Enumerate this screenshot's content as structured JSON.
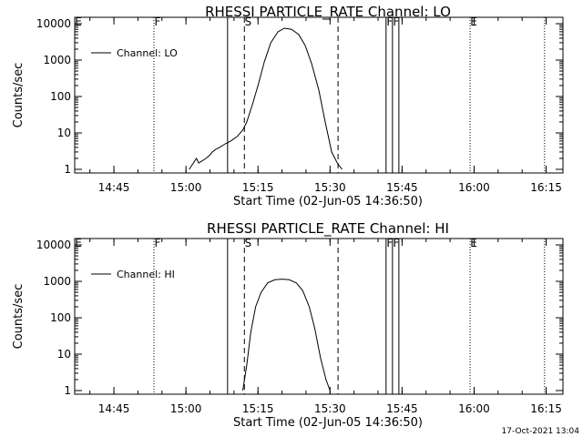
{
  "timestamp": "17-Oct-2021 13:04",
  "chart_data": [
    {
      "type": "line",
      "title": "RHESSI PARTICLE_RATE Channel: LO",
      "xlabel": "Start Time (02-Jun-05 14:36:50)",
      "ylabel": "Counts/sec",
      "x_unit": "time (HH:MM, 02-Jun-05)",
      "xlim": [
        "14:36:50",
        "16:18:30"
      ],
      "ylim": [
        1,
        10000
      ],
      "yscale": "log",
      "x_ticks": [
        "14:45",
        "15:00",
        "15:15",
        "15:30",
        "15:45",
        "16:00",
        "16:15"
      ],
      "y_ticks": [
        "1",
        "10",
        "100",
        "1000",
        "10000"
      ],
      "legend": {
        "position": "top-left",
        "entries": [
          "Channel: LO"
        ]
      },
      "series": [
        {
          "name": "Channel: LO",
          "x": [
            "15:00:40",
            "15:02:10",
            "15:02:40",
            "15:04:10",
            "15:05:00",
            "15:05:30",
            "15:06:10",
            "15:07:00",
            "15:08:10",
            "15:09:20",
            "15:10:40",
            "15:11:50",
            "15:12:40",
            "15:13:50",
            "15:15:00",
            "15:16:20",
            "15:17:40",
            "15:19:10",
            "15:20:30",
            "15:22:00",
            "15:23:30",
            "15:24:50",
            "15:26:10",
            "15:27:40",
            "15:29:00",
            "15:30:20",
            "15:31:30",
            "15:32:30"
          ],
          "y": [
            1,
            2,
            1.5,
            2,
            2.5,
            3,
            3.5,
            4,
            5,
            6,
            8,
            12,
            20,
            60,
            200,
            900,
            3000,
            6000,
            7500,
            7000,
            5000,
            2500,
            800,
            150,
            20,
            3,
            1.5,
            1
          ]
        }
      ],
      "vlines": [
        {
          "x": "14:53:20",
          "style": "dotted",
          "label": "F"
        },
        {
          "x": "15:08:40",
          "style": "solid",
          "label": ""
        },
        {
          "x": "15:12:10",
          "style": "dashed",
          "label": "S"
        },
        {
          "x": "15:31:40",
          "style": "dashed",
          "label": ""
        },
        {
          "x": "15:41:40",
          "style": "solid",
          "label": "F"
        },
        {
          "x": "15:43:00",
          "style": "solid",
          "label": "F"
        },
        {
          "x": "15:44:20",
          "style": "solid",
          "label": ""
        },
        {
          "x": "15:59:10",
          "style": "dotted",
          "label": "E"
        },
        {
          "x": "16:14:40",
          "style": "dotted",
          "label": ""
        }
      ],
      "top_left_marker": "E"
    },
    {
      "type": "line",
      "title": "RHESSI PARTICLE_RATE Channel: HI",
      "xlabel": "Start Time (02-Jun-05 14:36:50)",
      "ylabel": "Counts/sec",
      "x_unit": "time (HH:MM, 02-Jun-05)",
      "xlim": [
        "14:36:50",
        "16:18:30"
      ],
      "ylim": [
        1,
        10000
      ],
      "yscale": "log",
      "x_ticks": [
        "14:45",
        "15:00",
        "15:15",
        "15:30",
        "15:45",
        "16:00",
        "16:15"
      ],
      "y_ticks": [
        "1",
        "10",
        "100",
        "1000",
        "10000"
      ],
      "legend": {
        "position": "top-left",
        "entries": [
          "Channel: HI"
        ]
      },
      "series": [
        {
          "name": "Channel: HI",
          "x": [
            "15:11:50",
            "15:12:40",
            "15:13:30",
            "15:14:30",
            "15:15:40",
            "15:17:00",
            "15:18:30",
            "15:20:00",
            "15:21:30",
            "15:23:00",
            "15:24:20",
            "15:25:40",
            "15:26:50",
            "15:28:00",
            "15:29:10",
            "15:30:00"
          ],
          "y": [
            1,
            5,
            40,
            200,
            500,
            900,
            1100,
            1150,
            1100,
            900,
            550,
            200,
            50,
            8,
            2,
            1
          ]
        }
      ],
      "vlines": [
        {
          "x": "14:53:20",
          "style": "dotted",
          "label": "F"
        },
        {
          "x": "15:08:40",
          "style": "solid",
          "label": ""
        },
        {
          "x": "15:12:10",
          "style": "dashed",
          "label": "S"
        },
        {
          "x": "15:31:40",
          "style": "dashed",
          "label": ""
        },
        {
          "x": "15:41:40",
          "style": "solid",
          "label": "F"
        },
        {
          "x": "15:43:00",
          "style": "solid",
          "label": "F"
        },
        {
          "x": "15:44:20",
          "style": "solid",
          "label": ""
        },
        {
          "x": "15:59:10",
          "style": "dotted",
          "label": "E"
        },
        {
          "x": "16:14:40",
          "style": "dotted",
          "label": ""
        }
      ],
      "top_left_marker": "E"
    }
  ]
}
